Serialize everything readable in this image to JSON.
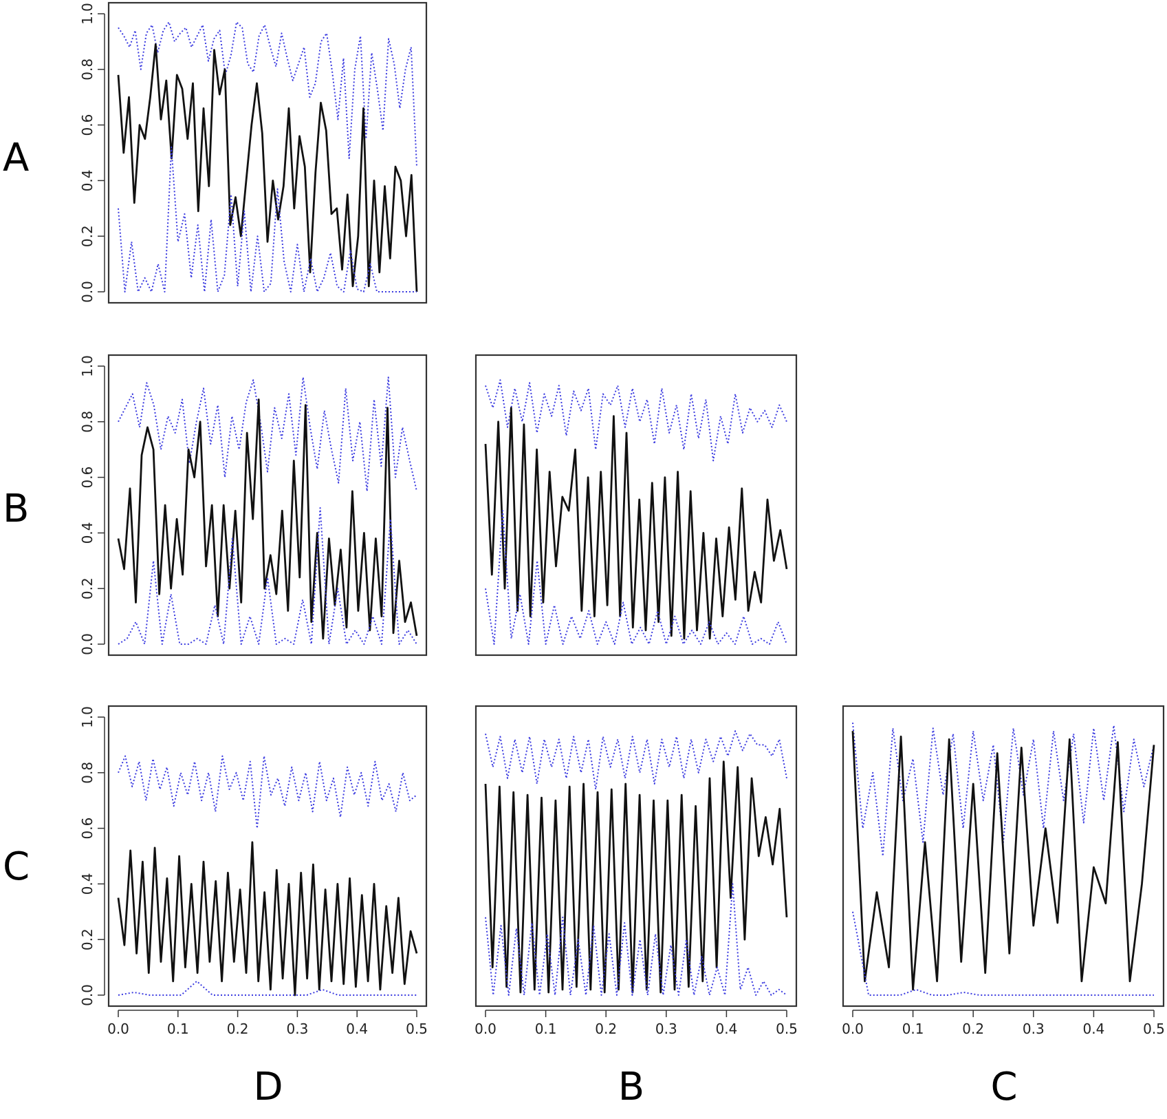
{
  "figure": {
    "row_labels": [
      "A",
      "B",
      "C"
    ],
    "col_labels": [
      "D",
      "B",
      "C"
    ]
  },
  "colors": {
    "solid_line": "#111111",
    "dotted_line": "#3a3ae0",
    "frame": "#333333",
    "tick_text": "#222222"
  },
  "chart_data": [
    {
      "panel": "A-D",
      "row": "A",
      "col": "D",
      "type": "line",
      "xlim": [
        0,
        0.5
      ],
      "ylim": [
        0,
        1
      ],
      "x_ticks": [
        "0.0",
        "0.1",
        "0.2",
        "0.3",
        "0.4",
        "0.5"
      ],
      "y_ticks": [
        "0.0",
        "0.2",
        "0.4",
        "0.6",
        "0.8",
        "1.0"
      ],
      "show_x_ticks": false,
      "series": [
        {
          "name": "upper",
          "style": "dotted",
          "x0": 0,
          "x1": 0.5,
          "values": [
            0.95,
            0.92,
            0.88,
            0.94,
            0.8,
            0.93,
            0.96,
            0.86,
            0.94,
            0.97,
            0.9,
            0.93,
            0.95,
            0.88,
            0.92,
            0.96,
            0.83,
            0.91,
            0.94,
            0.78,
            0.85,
            0.97,
            0.95,
            0.82,
            0.79,
            0.92,
            0.96,
            0.88,
            0.81,
            0.93,
            0.84,
            0.76,
            0.82,
            0.88,
            0.7,
            0.75,
            0.9,
            0.93,
            0.79,
            0.62,
            0.84,
            0.48,
            0.8,
            0.92,
            0.55,
            0.86,
            0.73,
            0.58,
            0.91,
            0.82,
            0.66,
            0.8,
            0.88,
            0.45
          ]
        },
        {
          "name": "mean",
          "style": "solid",
          "x0": 0,
          "x1": 0.5,
          "values": [
            0.78,
            0.5,
            0.7,
            0.32,
            0.6,
            0.55,
            0.7,
            0.89,
            0.62,
            0.76,
            0.48,
            0.78,
            0.73,
            0.55,
            0.75,
            0.29,
            0.66,
            0.38,
            0.87,
            0.71,
            0.8,
            0.24,
            0.34,
            0.2,
            0.4,
            0.6,
            0.75,
            0.57,
            0.18,
            0.4,
            0.26,
            0.38,
            0.66,
            0.3,
            0.56,
            0.45,
            0.07,
            0.43,
            0.68,
            0.58,
            0.28,
            0.3,
            0.08,
            0.35,
            0.02,
            0.2,
            0.66,
            0.02,
            0.4,
            0.07,
            0.38,
            0.12,
            0.45,
            0.4,
            0.2,
            0.42,
            0.0
          ]
        },
        {
          "name": "lower",
          "style": "dotted",
          "x0": 0,
          "x1": 0.5,
          "values": [
            0.3,
            0.0,
            0.18,
            0.0,
            0.05,
            0.0,
            0.1,
            0.0,
            0.52,
            0.18,
            0.28,
            0.05,
            0.24,
            0.0,
            0.26,
            0.0,
            0.06,
            0.35,
            0.02,
            0.29,
            0.0,
            0.2,
            0.0,
            0.03,
            0.37,
            0.11,
            0.0,
            0.17,
            0.0,
            0.12,
            0.0,
            0.05,
            0.14,
            0.02,
            0.0,
            0.15,
            0.01,
            0.0,
            0.1,
            0.0,
            0.0,
            0.0,
            0.0,
            0.0,
            0.0,
            0.0
          ]
        }
      ]
    },
    {
      "panel": "B-D",
      "row": "B",
      "col": "D",
      "type": "line",
      "xlim": [
        0,
        0.5
      ],
      "ylim": [
        0,
        1
      ],
      "x_ticks": [
        "0.0",
        "0.1",
        "0.2",
        "0.3",
        "0.4",
        "0.5"
      ],
      "y_ticks": [
        "0.0",
        "0.2",
        "0.4",
        "0.6",
        "0.8",
        "1.0"
      ],
      "show_x_ticks": false,
      "series": [
        {
          "name": "upper",
          "style": "dotted",
          "x0": 0,
          "x1": 0.5,
          "values": [
            0.8,
            0.85,
            0.9,
            0.78,
            0.94,
            0.86,
            0.7,
            0.82,
            0.76,
            0.88,
            0.65,
            0.8,
            0.92,
            0.72,
            0.86,
            0.6,
            0.82,
            0.7,
            0.87,
            0.95,
            0.8,
            0.62,
            0.85,
            0.74,
            0.9,
            0.68,
            0.96,
            0.78,
            0.63,
            0.84,
            0.7,
            0.58,
            0.92,
            0.66,
            0.8,
            0.55,
            0.88,
            0.64,
            0.96,
            0.6,
            0.78,
            0.66,
            0.55
          ]
        },
        {
          "name": "mean",
          "style": "solid",
          "x0": 0,
          "x1": 0.5,
          "values": [
            0.38,
            0.27,
            0.56,
            0.15,
            0.68,
            0.78,
            0.7,
            0.18,
            0.5,
            0.2,
            0.45,
            0.25,
            0.7,
            0.6,
            0.8,
            0.28,
            0.5,
            0.1,
            0.5,
            0.2,
            0.48,
            0.15,
            0.76,
            0.45,
            0.88,
            0.2,
            0.32,
            0.18,
            0.48,
            0.12,
            0.66,
            0.24,
            0.86,
            0.08,
            0.4,
            0.02,
            0.38,
            0.14,
            0.34,
            0.06,
            0.55,
            0.12,
            0.4,
            0.05,
            0.38,
            0.1,
            0.85,
            0.04,
            0.3,
            0.08,
            0.15,
            0.03
          ]
        },
        {
          "name": "lower",
          "style": "dotted",
          "x0": 0,
          "x1": 0.5,
          "values": [
            0.0,
            0.02,
            0.08,
            0.0,
            0.3,
            0.0,
            0.18,
            0.0,
            0.0,
            0.02,
            0.0,
            0.14,
            0.0,
            0.38,
            0.0,
            0.1,
            0.0,
            0.24,
            0.0,
            0.02,
            0.0,
            0.16,
            0.0,
            0.49,
            0.0,
            0.2,
            0.0,
            0.05,
            0.0,
            0.1,
            0.0,
            0.45,
            0.0,
            0.05,
            0.0
          ]
        }
      ]
    },
    {
      "panel": "B-B",
      "row": "B",
      "col": "B",
      "type": "line",
      "xlim": [
        0,
        0.5
      ],
      "ylim": [
        0,
        1
      ],
      "x_ticks": [
        "0.0",
        "0.1",
        "0.2",
        "0.3",
        "0.4",
        "0.5"
      ],
      "y_ticks": [
        "0.0",
        "0.2",
        "0.4",
        "0.6",
        "0.8",
        "1.0"
      ],
      "show_x_ticks": false,
      "series": [
        {
          "name": "upper",
          "style": "dotted",
          "x0": 0,
          "x1": 0.5,
          "values": [
            0.93,
            0.85,
            0.95,
            0.78,
            0.92,
            0.8,
            0.94,
            0.76,
            0.9,
            0.82,
            0.93,
            0.75,
            0.91,
            0.84,
            0.92,
            0.7,
            0.9,
            0.86,
            0.93,
            0.78,
            0.92,
            0.8,
            0.88,
            0.72,
            0.92,
            0.76,
            0.86,
            0.7,
            0.9,
            0.74,
            0.88,
            0.66,
            0.82,
            0.72,
            0.9,
            0.76,
            0.85,
            0.8,
            0.84,
            0.78,
            0.86,
            0.8
          ]
        },
        {
          "name": "mean",
          "style": "solid",
          "x0": 0,
          "x1": 0.5,
          "values": [
            0.72,
            0.25,
            0.8,
            0.2,
            0.85,
            0.12,
            0.79,
            0.1,
            0.7,
            0.15,
            0.62,
            0.28,
            0.53,
            0.48,
            0.7,
            0.12,
            0.6,
            0.1,
            0.62,
            0.14,
            0.82,
            0.1,
            0.76,
            0.06,
            0.52,
            0.05,
            0.58,
            0.08,
            0.6,
            0.03,
            0.62,
            0.02,
            0.55,
            0.05,
            0.4,
            0.02,
            0.38,
            0.1,
            0.42,
            0.16,
            0.56,
            0.12,
            0.26,
            0.15,
            0.52,
            0.3,
            0.41,
            0.27
          ]
        },
        {
          "name": "lower",
          "style": "dotted",
          "x0": 0,
          "x1": 0.5,
          "values": [
            0.2,
            0.0,
            0.48,
            0.02,
            0.18,
            0.0,
            0.3,
            0.0,
            0.14,
            0.0,
            0.1,
            0.02,
            0.12,
            0.0,
            0.08,
            0.0,
            0.15,
            0.0,
            0.06,
            0.0,
            0.12,
            0.0,
            0.1,
            0.0,
            0.05,
            0.0,
            0.08,
            0.0,
            0.04,
            0.0,
            0.1,
            0.0,
            0.02,
            0.0,
            0.08,
            0.0
          ]
        }
      ]
    },
    {
      "panel": "C-D",
      "row": "C",
      "col": "D",
      "type": "line",
      "xlim": [
        0,
        0.5
      ],
      "ylim": [
        0,
        1
      ],
      "x_ticks": [
        "0.0",
        "0.1",
        "0.2",
        "0.3",
        "0.4",
        "0.5"
      ],
      "y_ticks": [
        "0.0",
        "0.2",
        "0.4",
        "0.6",
        "0.8",
        "1.0"
      ],
      "show_x_ticks": true,
      "series": [
        {
          "name": "upper",
          "style": "dotted",
          "x0": 0,
          "x1": 0.5,
          "values": [
            0.8,
            0.86,
            0.75,
            0.84,
            0.7,
            0.85,
            0.74,
            0.82,
            0.68,
            0.8,
            0.72,
            0.84,
            0.7,
            0.8,
            0.66,
            0.86,
            0.74,
            0.8,
            0.7,
            0.84,
            0.6,
            0.86,
            0.72,
            0.78,
            0.68,
            0.82,
            0.7,
            0.8,
            0.66,
            0.84,
            0.7,
            0.78,
            0.64,
            0.82,
            0.72,
            0.8,
            0.68,
            0.84,
            0.7,
            0.76,
            0.66,
            0.8,
            0.7,
            0.72
          ]
        },
        {
          "name": "mean",
          "style": "solid",
          "x0": 0,
          "x1": 0.5,
          "values": [
            0.35,
            0.18,
            0.52,
            0.15,
            0.48,
            0.08,
            0.53,
            0.12,
            0.42,
            0.05,
            0.5,
            0.1,
            0.4,
            0.08,
            0.48,
            0.12,
            0.41,
            0.05,
            0.44,
            0.12,
            0.38,
            0.08,
            0.55,
            0.05,
            0.37,
            0.02,
            0.45,
            0.06,
            0.4,
            0.0,
            0.44,
            0.06,
            0.47,
            0.02,
            0.38,
            0.05,
            0.4,
            0.04,
            0.42,
            0.03,
            0.36,
            0.05,
            0.4,
            0.02,
            0.32,
            0.08,
            0.35,
            0.04,
            0.23,
            0.15
          ]
        },
        {
          "name": "lower",
          "style": "dotted",
          "x0": 0,
          "x1": 0.5,
          "values": [
            0.0,
            0.01,
            0.0,
            0.0,
            0.0,
            0.05,
            0.0,
            0.0,
            0.0,
            0.0,
            0.0,
            0.0,
            0.0,
            0.02,
            0.0,
            0.0,
            0.0,
            0.0,
            0.0,
            0.0
          ]
        }
      ]
    },
    {
      "panel": "C-B",
      "row": "C",
      "col": "B",
      "type": "line",
      "xlim": [
        0,
        0.5
      ],
      "ylim": [
        0,
        1
      ],
      "x_ticks": [
        "0.0",
        "0.1",
        "0.2",
        "0.3",
        "0.4",
        "0.5"
      ],
      "y_ticks": [
        "0.0",
        "0.2",
        "0.4",
        "0.6",
        "0.8",
        "1.0"
      ],
      "show_x_ticks": true,
      "series": [
        {
          "name": "upper",
          "style": "dotted",
          "x0": 0,
          "x1": 0.5,
          "values": [
            0.94,
            0.82,
            0.93,
            0.78,
            0.92,
            0.8,
            0.93,
            0.76,
            0.92,
            0.82,
            0.92,
            0.78,
            0.93,
            0.8,
            0.92,
            0.74,
            0.93,
            0.82,
            0.92,
            0.78,
            0.93,
            0.8,
            0.92,
            0.76,
            0.92,
            0.82,
            0.93,
            0.78,
            0.92,
            0.8,
            0.92,
            0.84,
            0.93,
            0.86,
            0.95,
            0.88,
            0.94,
            0.9,
            0.9,
            0.86,
            0.92,
            0.78
          ]
        },
        {
          "name": "mean",
          "style": "solid",
          "x0": 0,
          "x1": 0.5,
          "values": [
            0.76,
            0.1,
            0.75,
            0.03,
            0.73,
            0.01,
            0.72,
            0.02,
            0.71,
            0.01,
            0.7,
            0.02,
            0.75,
            0.03,
            0.76,
            0.02,
            0.73,
            0.01,
            0.74,
            0.02,
            0.76,
            0.01,
            0.72,
            0.02,
            0.7,
            0.01,
            0.7,
            0.02,
            0.72,
            0.03,
            0.68,
            0.05,
            0.78,
            0.1,
            0.84,
            0.35,
            0.82,
            0.2,
            0.78,
            0.5,
            0.64,
            0.47,
            0.67,
            0.28
          ]
        },
        {
          "name": "lower",
          "style": "dotted",
          "x0": 0,
          "x1": 0.5,
          "values": [
            0.28,
            0.0,
            0.25,
            0.0,
            0.24,
            0.0,
            0.26,
            0.0,
            0.22,
            0.0,
            0.28,
            0.0,
            0.2,
            0.0,
            0.25,
            0.0,
            0.22,
            0.0,
            0.26,
            0.0,
            0.2,
            0.0,
            0.22,
            0.0,
            0.18,
            0.0,
            0.2,
            0.0,
            0.14,
            0.0,
            0.1,
            0.0,
            0.4,
            0.02,
            0.1,
            0.0,
            0.05,
            0.0,
            0.02,
            0.0
          ]
        }
      ]
    },
    {
      "panel": "C-C",
      "row": "C",
      "col": "C",
      "type": "line",
      "xlim": [
        0,
        0.5
      ],
      "ylim": [
        0,
        1
      ],
      "x_ticks": [
        "0.0",
        "0.1",
        "0.2",
        "0.3",
        "0.4",
        "0.5"
      ],
      "y_ticks": [
        "0.0",
        "0.2",
        "0.4",
        "0.6",
        "0.8",
        "1.0"
      ],
      "show_x_ticks": true,
      "series": [
        {
          "name": "upper",
          "style": "dotted",
          "x0": 0,
          "x1": 0.5,
          "values": [
            0.98,
            0.6,
            0.8,
            0.5,
            0.96,
            0.7,
            0.85,
            0.55,
            0.96,
            0.72,
            0.94,
            0.6,
            0.95,
            0.7,
            0.9,
            0.55,
            0.96,
            0.72,
            0.92,
            0.6,
            0.95,
            0.7,
            0.94,
            0.62,
            0.96,
            0.7,
            0.97,
            0.66,
            0.92,
            0.75,
            0.9
          ]
        },
        {
          "name": "mean",
          "style": "solid",
          "x0": 0,
          "x1": 0.5,
          "values": [
            0.95,
            0.05,
            0.37,
            0.1,
            0.93,
            0.02,
            0.55,
            0.05,
            0.92,
            0.12,
            0.76,
            0.08,
            0.87,
            0.15,
            0.89,
            0.25,
            0.6,
            0.26,
            0.92,
            0.05,
            0.46,
            0.33,
            0.91,
            0.05,
            0.4,
            0.9
          ]
        },
        {
          "name": "lower",
          "style": "dotted",
          "x0": 0,
          "x1": 0.5,
          "values": [
            0.3,
            0.0,
            0.0,
            0.0,
            0.02,
            0.0,
            0.0,
            0.01,
            0.0,
            0.0,
            0.0,
            0.0,
            0.0,
            0.0,
            0.0,
            0.0,
            0.0,
            0.0,
            0.0,
            0.0
          ]
        }
      ]
    }
  ]
}
